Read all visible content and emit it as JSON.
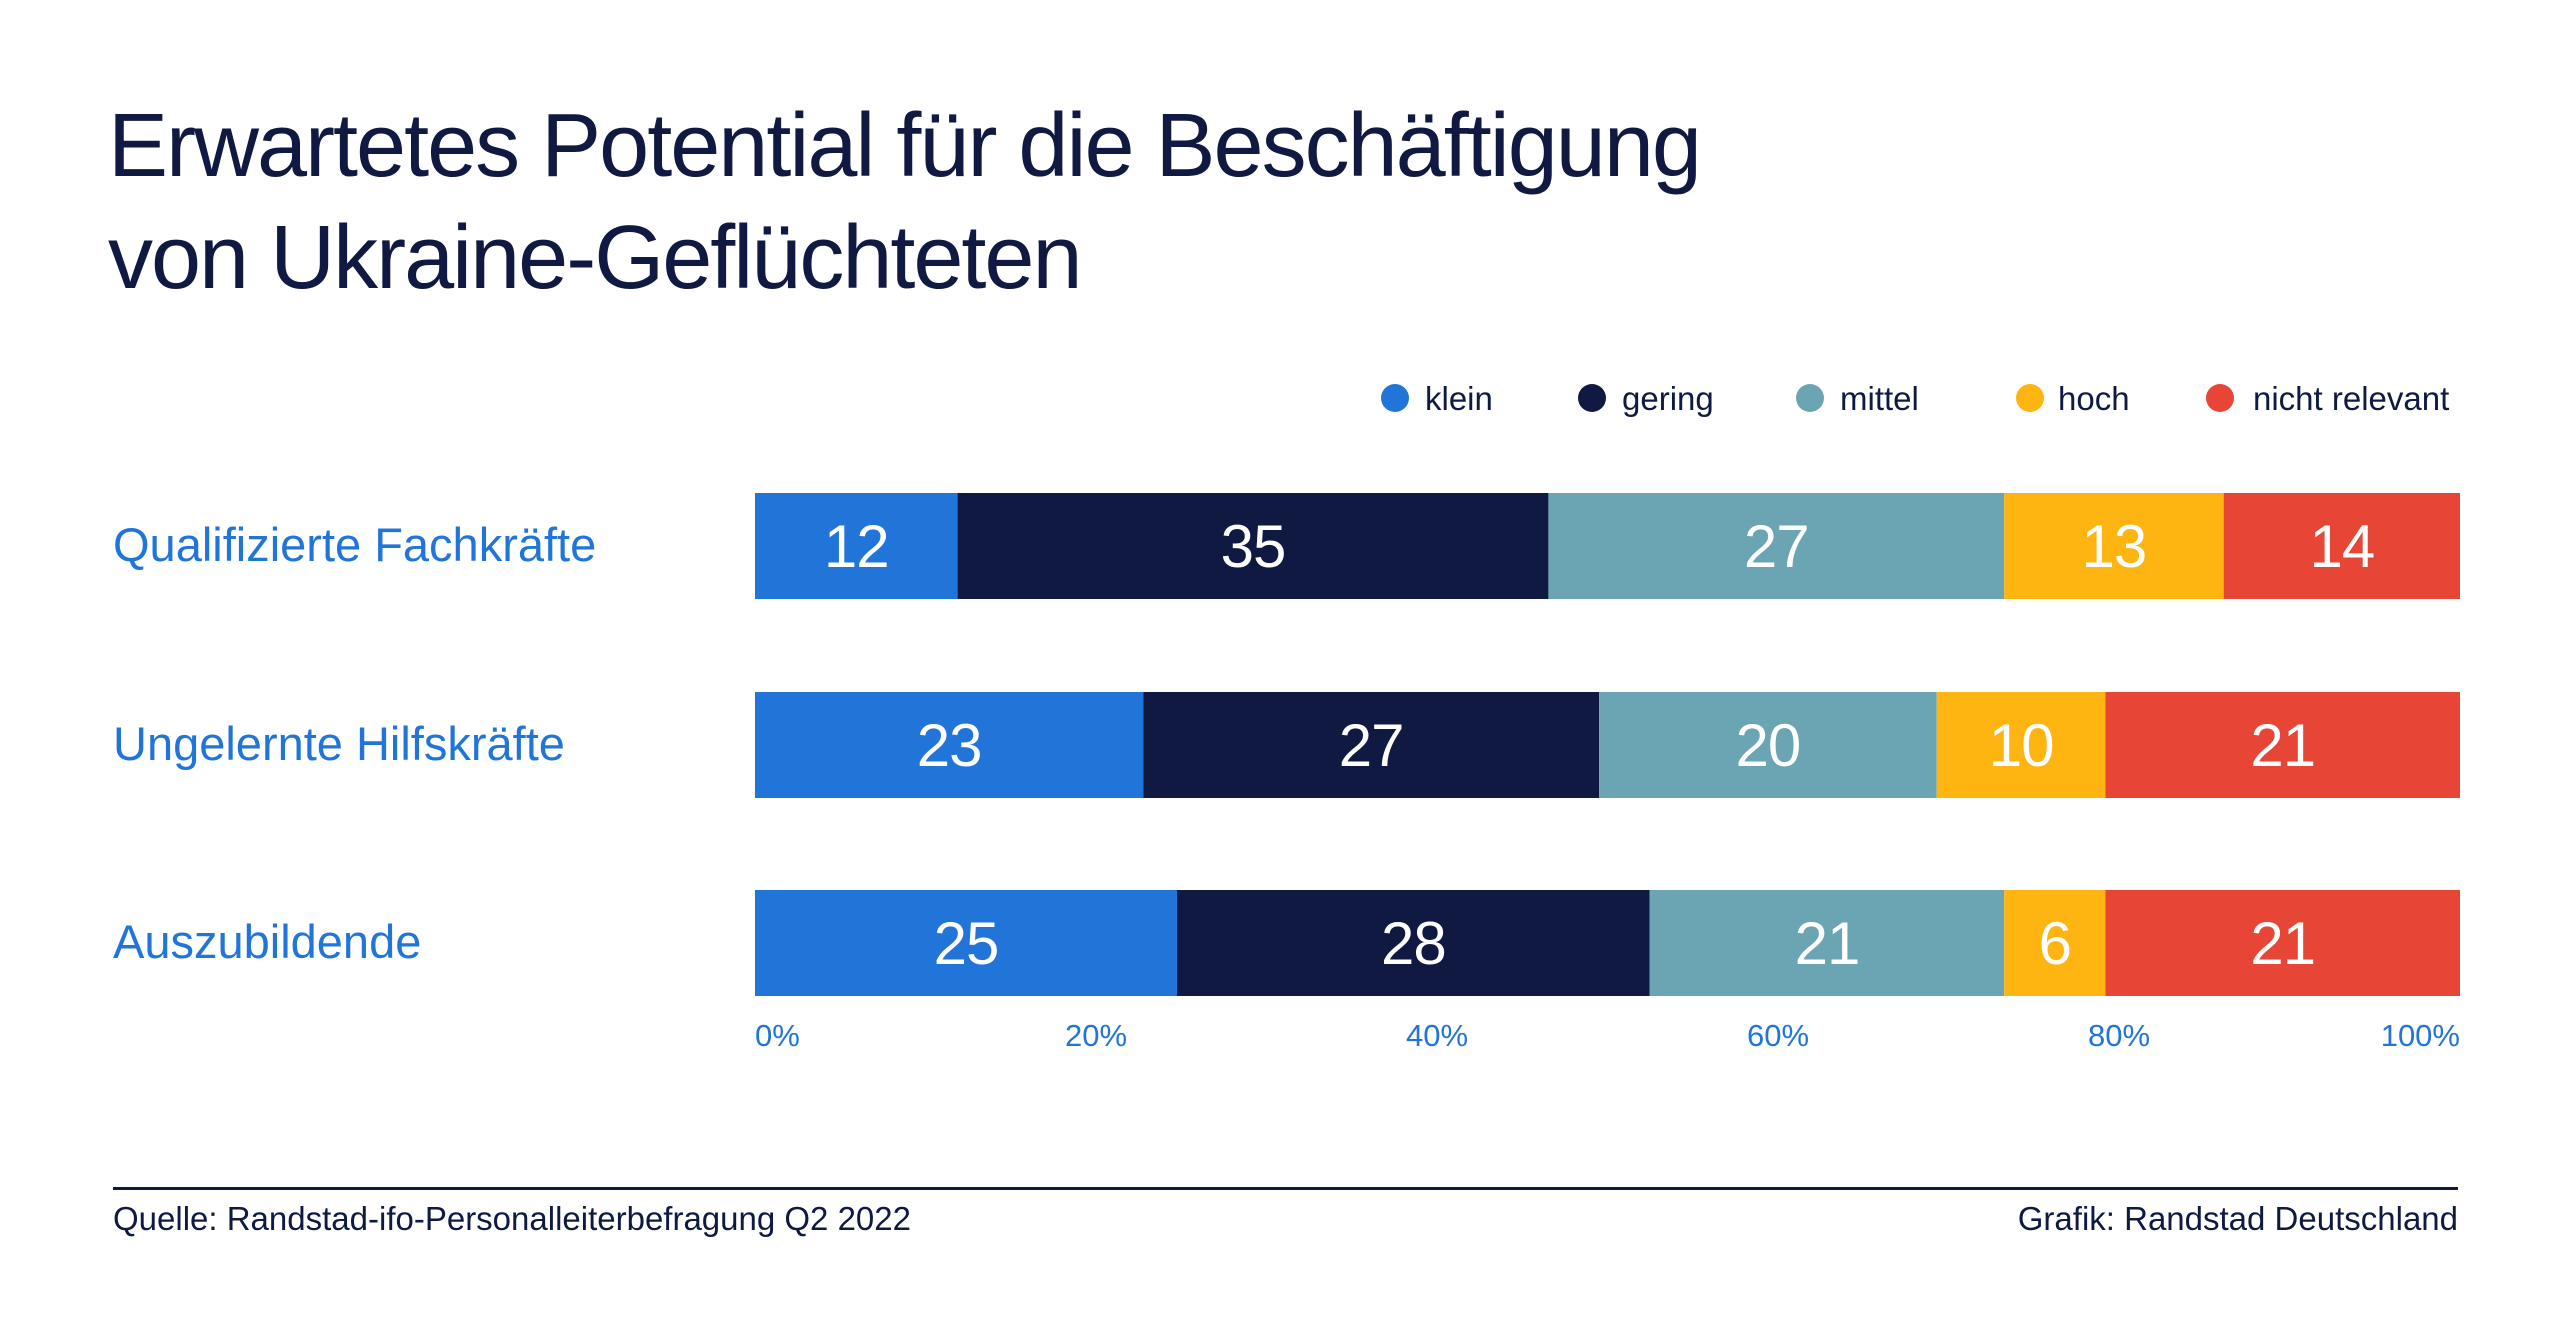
{
  "title_lines": [
    "Erwartetes Potential für die Beschäftigung",
    "von Ukraine-Geflüchteten"
  ],
  "footer": {
    "source": "Quelle: Randstad-ifo-Personalleiterbefragung Q2 2022",
    "credit": "Grafik: Randstad Deutschland"
  },
  "chart_data": {
    "type": "bar",
    "orientation": "horizontal",
    "stacked": true,
    "title": "Erwartetes Potential für die Beschäftigung von Ukraine-Geflüchteten",
    "categories": [
      "Qualifizierte Fachkräfte",
      "Ungelernte Hilfskräfte",
      "Auszubildende"
    ],
    "series": [
      {
        "name": "klein",
        "color": "#2175d9",
        "values": [
          12,
          23,
          25
        ]
      },
      {
        "name": "gering",
        "color": "#0f1941",
        "values": [
          35,
          27,
          28
        ]
      },
      {
        "name": "mittel",
        "color": "#6ba5b4",
        "values": [
          27,
          20,
          21
        ]
      },
      {
        "name": "hoch",
        "color": "#ffb511",
        "values": [
          13,
          10,
          6
        ]
      },
      {
        "name": "nicht relevant",
        "color": "#e74536",
        "values": [
          14,
          21,
          21
        ]
      }
    ],
    "x_ticks": [
      "0%",
      "20%",
      "40%",
      "60%",
      "80%",
      "100%"
    ],
    "xlim": [
      0,
      100
    ],
    "legend": "top-right",
    "colors": {
      "category_label": "#2175d9",
      "tick_label": "#2175d9",
      "bar_label": "#ffffff",
      "text": "#0f1941"
    }
  }
}
